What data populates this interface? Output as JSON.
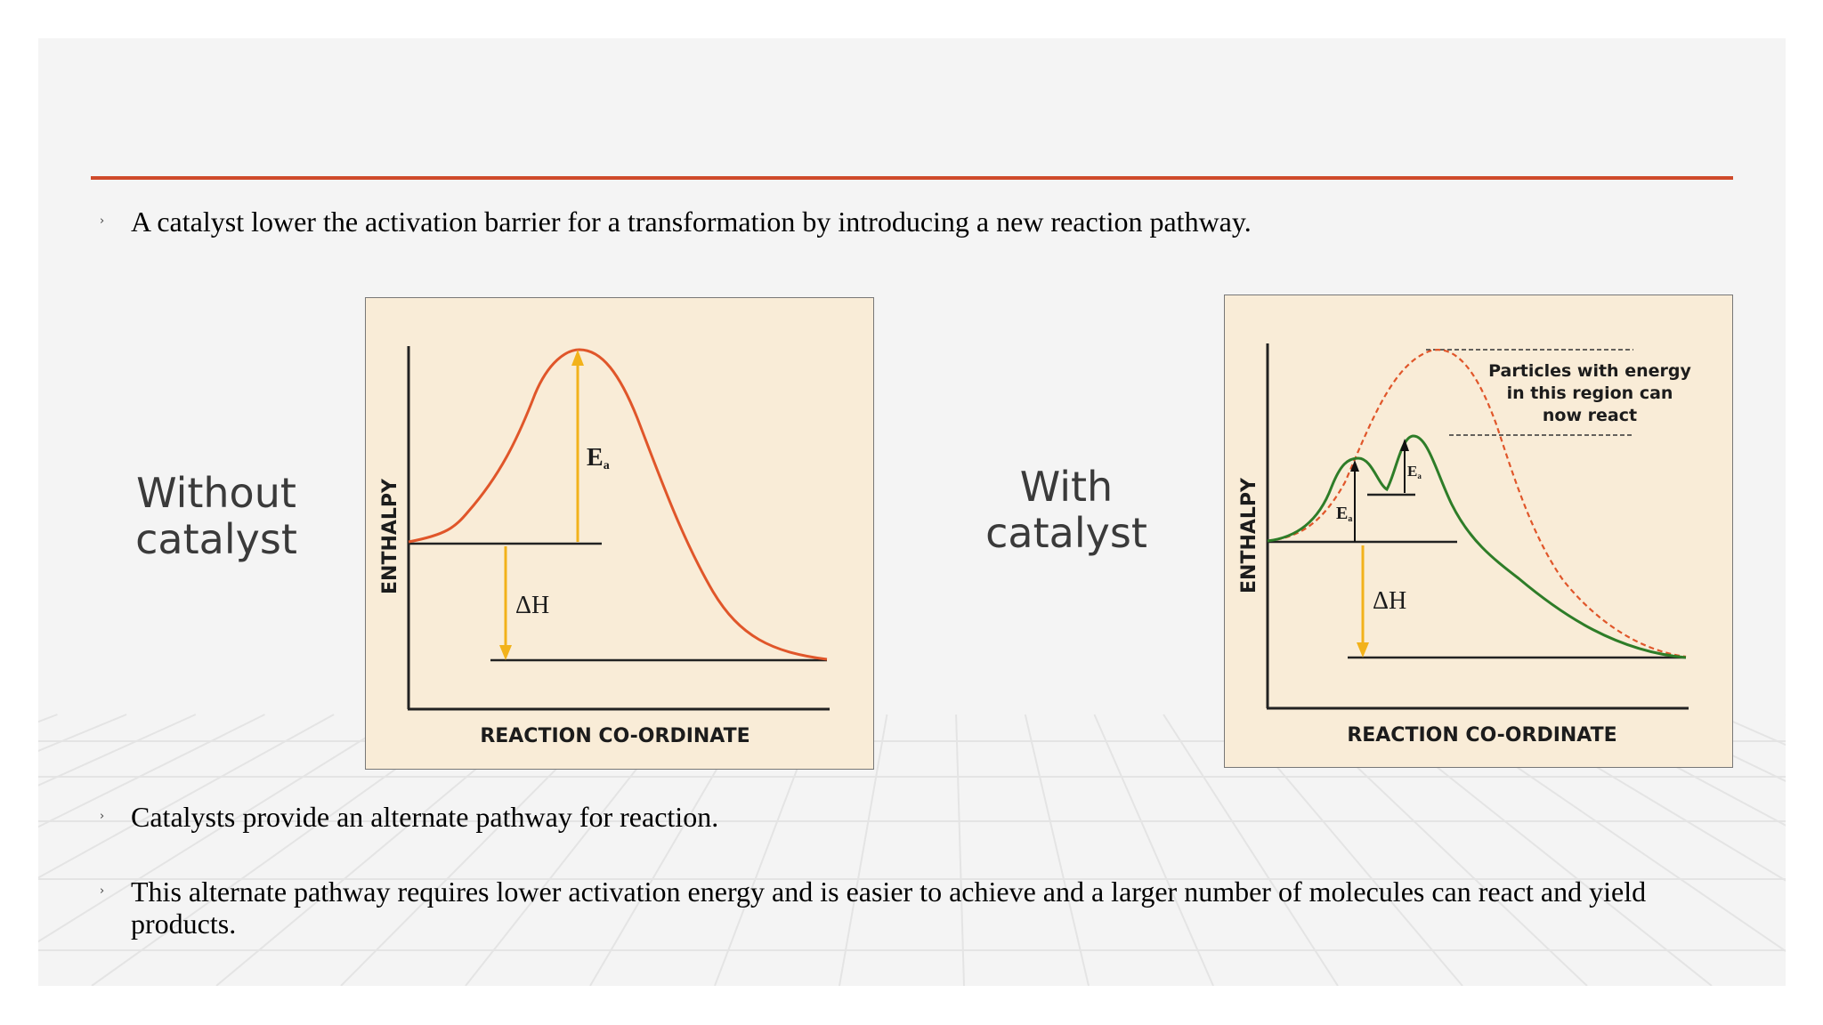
{
  "bullets": [
    {
      "marker": "›",
      "text": "A catalyst lower the activation barrier for a transformation by introducing a new reaction pathway."
    },
    {
      "marker": "›",
      "text": "Catalysts provide an alternate pathway for reaction."
    },
    {
      "marker": "›",
      "text": "This alternate pathway requires lower activation energy and is easier to achieve and a larger number of molecules can react and yield products."
    }
  ],
  "labels": {
    "without": [
      "Without",
      "catalyst"
    ],
    "with": [
      "With",
      "catalyst"
    ]
  },
  "diagram_without": {
    "y_axis": "ENTHALPY",
    "x_axis": "REACTION CO-ORDINATE",
    "ea_label": "E",
    "ea_sub": "a",
    "dh_label": "ΔH"
  },
  "diagram_with": {
    "y_axis": "ENTHALPY",
    "x_axis": "REACTION CO-ORDINATE",
    "ea_label": "E",
    "ea_sub": "a",
    "dh_label": "ΔH",
    "note": [
      "Particles with energy",
      "in this region can",
      "now react"
    ]
  },
  "colors": {
    "rule": "#cf4a2a",
    "uncatalysed_curve": "#e0562a",
    "catalysed_curve": "#2e7d28",
    "arrow": "#f2b21b",
    "diagram_bg": "#f9ecd7"
  }
}
